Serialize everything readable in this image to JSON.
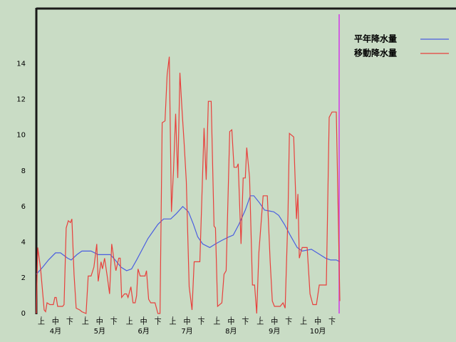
{
  "chart_data": {
    "type": "line",
    "xlim": [
      0,
      214
    ],
    "ylim": [
      0,
      17.1
    ],
    "yticks": [
      0,
      2,
      4,
      6,
      8,
      10,
      12,
      14
    ],
    "xticks": [
      {
        "value": 3.5,
        "label": "上"
      },
      {
        "value": 13.5,
        "label": "中"
      },
      {
        "value": 23.5,
        "label": "下"
      },
      {
        "value": 34.5,
        "label": "上"
      },
      {
        "value": 44.5,
        "label": "中"
      },
      {
        "value": 54.5,
        "label": "下"
      },
      {
        "value": 65.5,
        "label": "上"
      },
      {
        "value": 75.5,
        "label": "中"
      },
      {
        "value": 85.5,
        "label": "下"
      },
      {
        "value": 96,
        "label": "上"
      },
      {
        "value": 106,
        "label": "中"
      },
      {
        "value": 116,
        "label": "下"
      },
      {
        "value": 127,
        "label": "上"
      },
      {
        "value": 137,
        "label": "中"
      },
      {
        "value": 147,
        "label": "下"
      },
      {
        "value": 157.5,
        "label": "上"
      },
      {
        "value": 167.5,
        "label": "中"
      },
      {
        "value": 177.5,
        "label": "下"
      },
      {
        "value": 188,
        "label": "上"
      },
      {
        "value": 198,
        "label": "中"
      },
      {
        "value": 208,
        "label": "下"
      }
    ],
    "month_labels": [
      {
        "value": 13.5,
        "label": "4月"
      },
      {
        "value": 44.5,
        "label": "5月"
      },
      {
        "value": 75.5,
        "label": "6月"
      },
      {
        "value": 106,
        "label": "7月"
      },
      {
        "value": 137,
        "label": "8月"
      },
      {
        "value": 167.5,
        "label": "9月"
      },
      {
        "value": 198,
        "label": "10月"
      }
    ],
    "series": [
      {
        "name": "平年降水量",
        "color": "#4a5ee0",
        "x": [
          0,
          4.5,
          8.5,
          13.5,
          17,
          22,
          24.5,
          28.5,
          32,
          38.5,
          43.5,
          52,
          55.5,
          59.5,
          63.5,
          67,
          70.5,
          74.5,
          78.5,
          82,
          85.5,
          89.5,
          94.5,
          98.5,
          103,
          107,
          110.5,
          113.5,
          117,
          122,
          126,
          130.5,
          135.5,
          138.5,
          142.5,
          147,
          150.5,
          153,
          157,
          160.5,
          167,
          170.5,
          174.5,
          178.5,
          183.5,
          187,
          193.5,
          199.5,
          203.5,
          207,
          211,
          213.5
        ],
        "values": [
          2.2,
          2.6,
          3.0,
          3.4,
          3.4,
          3.1,
          3.0,
          3.3,
          3.5,
          3.5,
          3.3,
          3.3,
          3.0,
          2.6,
          2.4,
          2.5,
          3.0,
          3.6,
          4.2,
          4.6,
          5.0,
          5.3,
          5.3,
          5.6,
          6.0,
          5.7,
          5.0,
          4.3,
          3.9,
          3.7,
          3.9,
          4.1,
          4.3,
          4.4,
          5.0,
          5.8,
          6.6,
          6.6,
          6.2,
          5.8,
          5.7,
          5.5,
          5.0,
          4.4,
          3.7,
          3.5,
          3.6,
          3.3,
          3.1,
          3.0,
          3.0,
          2.9
        ]
      },
      {
        "name": "移動降水量",
        "color": "#e8403c",
        "x": [
          0,
          1,
          3,
          5.5,
          6.5,
          7.5,
          9.5,
          12,
          13,
          14,
          15,
          18.5,
          19.5,
          21,
          22.5,
          24,
          25,
          26.5,
          28,
          30.5,
          32,
          35,
          36.5,
          38.5,
          40.5,
          42.5,
          43.5,
          45.5,
          46.5,
          48,
          50,
          51.5,
          53,
          54.5,
          56,
          58,
          59,
          60,
          62,
          63.5,
          64.5,
          66.5,
          68,
          69.5,
          70.5,
          71.5,
          73,
          76.5,
          77.5,
          79,
          80.5,
          83.5,
          85.5,
          87,
          88.5,
          90.5,
          92,
          93.5,
          95,
          96.5,
          98,
          99.5,
          101,
          102.5,
          104,
          105.5,
          107.5,
          109.5,
          111,
          115,
          118,
          119.5,
          121,
          123,
          125,
          126,
          127.5,
          130.5,
          132,
          133.5,
          136,
          137.5,
          139,
          141,
          142,
          144,
          145.5,
          147,
          148,
          150,
          152,
          153.5,
          155,
          156.5,
          159.5,
          162.5,
          164.5,
          166,
          167.5,
          171.5,
          173.5,
          175,
          177,
          178,
          181,
          183,
          184,
          185,
          187,
          190.5,
          192.5,
          194.5,
          197,
          199,
          204,
          206,
          208,
          211,
          213.5
        ],
        "values": [
          0,
          3.7,
          2.5,
          0.2,
          0.1,
          0.6,
          0.5,
          0.5,
          0.9,
          0.9,
          0.4,
          0.4,
          0.5,
          4.8,
          5.2,
          5.1,
          5.3,
          2.2,
          0.3,
          0.2,
          0.1,
          0,
          2.1,
          2.1,
          2.6,
          3.9,
          1.8,
          2.9,
          2.5,
          3.1,
          2.0,
          1.1,
          3.9,
          3.1,
          2.4,
          3.1,
          3.1,
          0.9,
          1.1,
          1.1,
          0.9,
          1.5,
          0.6,
          0.6,
          1.0,
          2.5,
          2.1,
          2.1,
          2.4,
          0.8,
          0.6,
          0.6,
          0,
          0,
          10.7,
          10.8,
          13.4,
          14.4,
          5.7,
          8.0,
          11.2,
          7.6,
          13.5,
          11.4,
          9.5,
          7.4,
          1.5,
          0.2,
          2.9,
          2.9,
          10.4,
          7.5,
          11.9,
          11.9,
          4.9,
          4.8,
          0.4,
          0.6,
          2.2,
          2.4,
          10.2,
          10.3,
          8.2,
          8.2,
          8.4,
          3.9,
          7.6,
          7.6,
          9.3,
          7.6,
          1.6,
          1.6,
          0,
          3.4,
          6.6,
          6.6,
          2.9,
          0.7,
          0.4,
          0.4,
          0.6,
          0.3,
          5.6,
          10.1,
          9.9,
          5.3,
          6.7,
          3.1,
          3.7,
          3.7,
          1.1,
          0.5,
          0.5,
          1.6,
          1.6,
          11.0,
          11.3,
          11.3,
          0.7
        ]
      }
    ]
  }
}
